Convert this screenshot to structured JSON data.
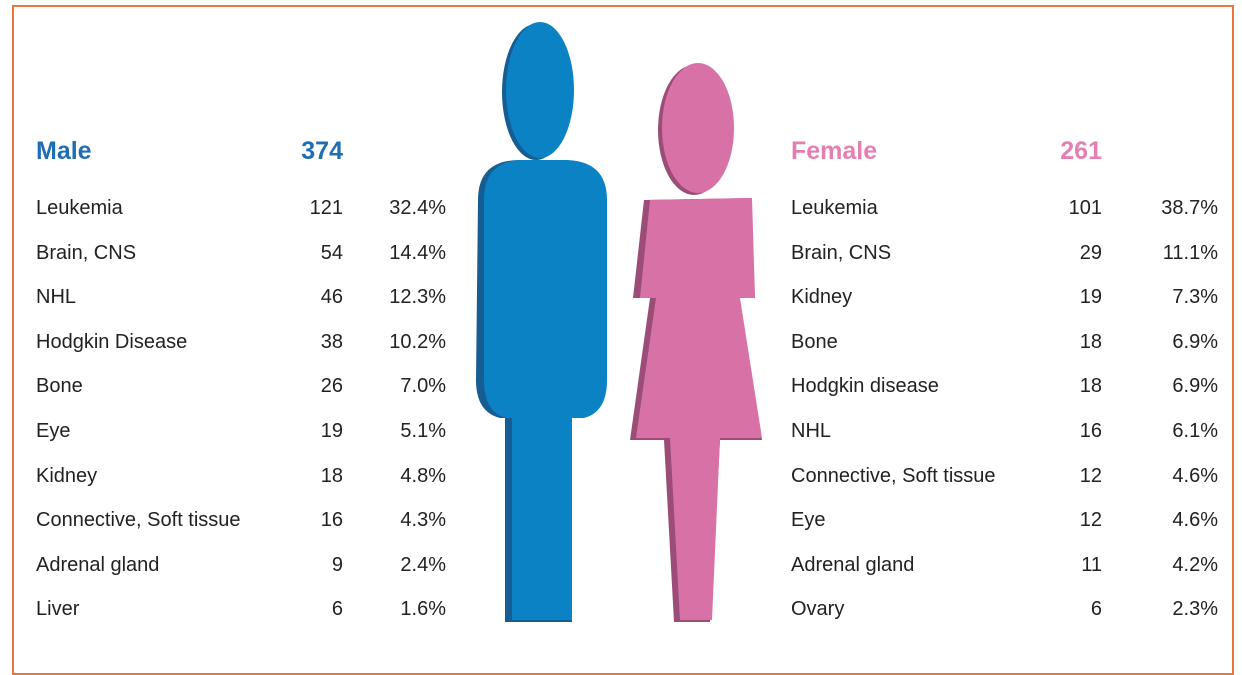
{
  "male": {
    "title": "Male",
    "total": "374",
    "rows": [
      [
        "Leukemia",
        "121",
        "32.4%"
      ],
      [
        "Brain, CNS",
        "54",
        "14.4%"
      ],
      [
        "NHL",
        "46",
        "12.3%"
      ],
      [
        "Hodgkin Disease",
        "38",
        "10.2%"
      ],
      [
        "Bone",
        "26",
        "7.0%"
      ],
      [
        "Eye",
        "19",
        "5.1%"
      ],
      [
        "Kidney",
        "18",
        "4.8%"
      ],
      [
        "Connective, Soft tissue",
        "16",
        "4.3%"
      ],
      [
        "Adrenal gland",
        "9",
        "2.4%"
      ],
      [
        "Liver",
        "6",
        "1.6%"
      ]
    ]
  },
  "female": {
    "title": "Female",
    "total": "261",
    "rows": [
      [
        "Leukemia",
        "101",
        "38.7%"
      ],
      [
        "Brain, CNS",
        "29",
        "11.1%"
      ],
      [
        "Kidney",
        "19",
        "7.3%"
      ],
      [
        "Bone",
        "18",
        "6.9%"
      ],
      [
        "Hodgkin disease",
        "18",
        "6.9%"
      ],
      [
        "NHL",
        "16",
        "6.1%"
      ],
      [
        "Connective, Soft tissue",
        "12",
        "4.6%"
      ],
      [
        "Eye",
        "12",
        "4.6%"
      ],
      [
        "Adrenal gland",
        "11",
        "4.2%"
      ],
      [
        "Ovary",
        "6",
        "2.3%"
      ]
    ]
  }
}
